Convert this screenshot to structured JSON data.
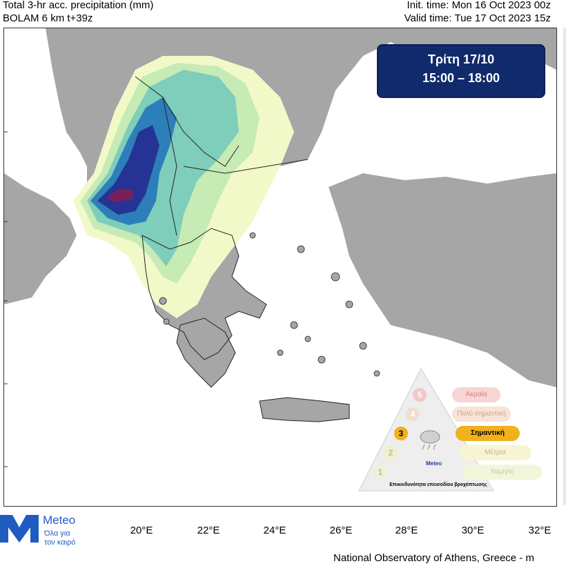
{
  "header": {
    "title_line1": "Total 3-hr acc. precipitation (mm)",
    "title_line2": "BOLAM 6 km t+39z",
    "init_time": "Init. time: Mon 16 Oct 2023 00z",
    "valid_time": "Valid time: Tue 17 Oct 2023 15z"
  },
  "date_box": {
    "day": "Τρίτη 17/10",
    "hours": "15:00 – 18:00"
  },
  "x_axis": {
    "ticks": [
      "20°E",
      "22°E",
      "24°E",
      "26°E",
      "28°E",
      "30°E",
      "32°E"
    ]
  },
  "severity_scale": {
    "levels": [
      {
        "number": "5",
        "label": "Ακραία",
        "active": false
      },
      {
        "number": "4",
        "label": "Πολύ σημαντική",
        "active": false
      },
      {
        "number": "3",
        "label": "Σημαντική",
        "active": true
      },
      {
        "number": "2",
        "label": "Μέτρια",
        "active": false
      },
      {
        "number": "1",
        "label": "Χαμηλή",
        "active": false
      }
    ],
    "brand": "Meteo",
    "sub": "Επικινδυνότητα επεισοδίου βροχόπτωσης",
    "caption": "Επικινδυνότητα επεισοδίου βροχόπτωσης"
  },
  "logo": {
    "name": "Meteo",
    "tagline_1": "Όλα για",
    "tagline_2": "τον καιρό"
  },
  "footer": "National Observatory of Athens, Greece - m",
  "colors": {
    "land": "#a6a6a6",
    "sea": "#ffffff",
    "precip_light": "#f2f9c9",
    "precip_low": "#c6ebb4",
    "precip_mid": "#7fcdbb",
    "precip_high": "#2c7fb8",
    "precip_very_high": "#253494",
    "precip_extreme": "#7a1f5c",
    "date_box": "#102a6b",
    "active_level": "#f0b11c"
  }
}
